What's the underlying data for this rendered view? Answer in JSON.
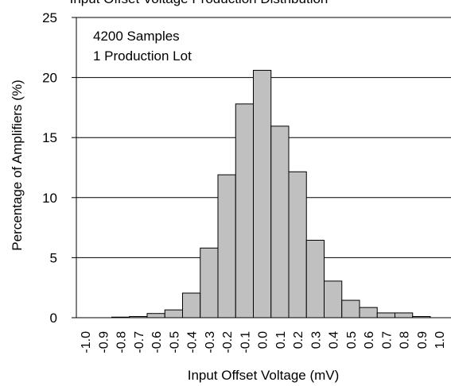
{
  "chart_data": {
    "type": "bar",
    "title": "",
    "title_partial": "Input Offset Voltage Production Distribution",
    "xlabel": "Input Offset Voltage (mV)",
    "ylabel": "Percentage of Amplifiers (%)",
    "annotation": [
      "4200 Samples",
      "1 Production Lot"
    ],
    "ylim": [
      0,
      25
    ],
    "yticks": [
      "0",
      "5",
      "10",
      "15",
      "20",
      "25"
    ],
    "categories": [
      "-1.0",
      "-0.9",
      "-0.8",
      "-0.7",
      "-0.6",
      "-0.5",
      "-0.4",
      "-0.3",
      "-0.2",
      "-0.1",
      "0.0",
      "0.1",
      "0.2",
      "0.3",
      "0.4",
      "0.5",
      "0.6",
      "0.7",
      "0.8",
      "0.9",
      "1.0"
    ],
    "values": [
      0,
      0,
      0.05,
      0.1,
      0.35,
      0.65,
      2.05,
      5.8,
      11.9,
      17.8,
      20.6,
      15.95,
      12.15,
      6.45,
      3.05,
      1.45,
      0.85,
      0.4,
      0.4,
      0.1,
      0
    ],
    "bar_color": "#c0c0c0",
    "grid": true
  }
}
